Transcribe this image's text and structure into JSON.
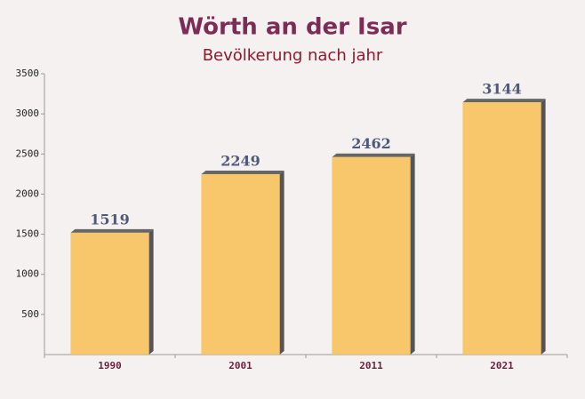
{
  "chart_data": {
    "type": "bar",
    "title": "Wörth an der Isar",
    "subtitle": "Bevölkerung nach jahr",
    "categories": [
      "1990",
      "2001",
      "2011",
      "2021"
    ],
    "values": [
      1519,
      2249,
      2462,
      3144
    ],
    "color": "#f8c15c",
    "ylim": [
      0,
      3500
    ],
    "yticks": [
      500,
      1000,
      1500,
      2000,
      2500,
      3000,
      3500
    ],
    "grid": false
  }
}
